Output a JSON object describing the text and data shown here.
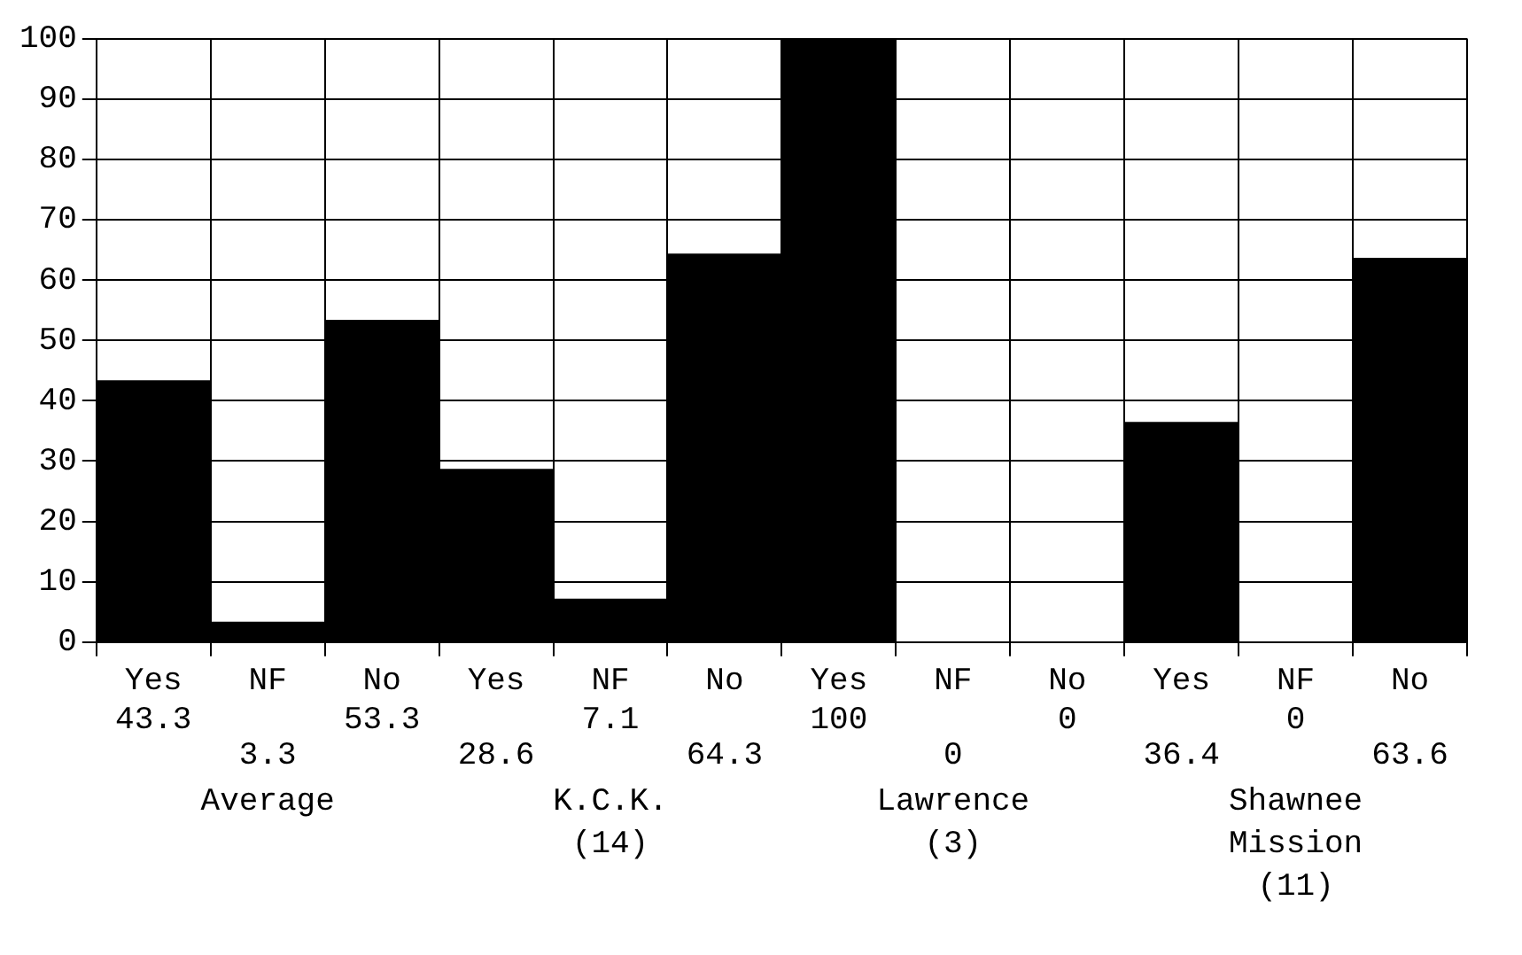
{
  "chart_data": {
    "type": "bar",
    "categories": [
      "Yes",
      "NF",
      "No",
      "Yes",
      "NF",
      "No",
      "Yes",
      "NF",
      "No",
      "Yes",
      "NF",
      "No"
    ],
    "values": [
      43.3,
      3.3,
      53.3,
      28.6,
      7.1,
      64.3,
      100,
      0,
      0,
      36.4,
      0,
      63.6
    ],
    "color": "#000000",
    "data_labels": true,
    "annotations": [
      "Average",
      "K.C.K.\n(14)",
      "Lawrence\n(3)",
      "Shawnee\nMission\n(11)"
    ],
    "ylim": [
      0,
      100
    ],
    "yticks": [
      0,
      10,
      20,
      30,
      40,
      50,
      60,
      70,
      80,
      90,
      100
    ],
    "grid": true
  }
}
